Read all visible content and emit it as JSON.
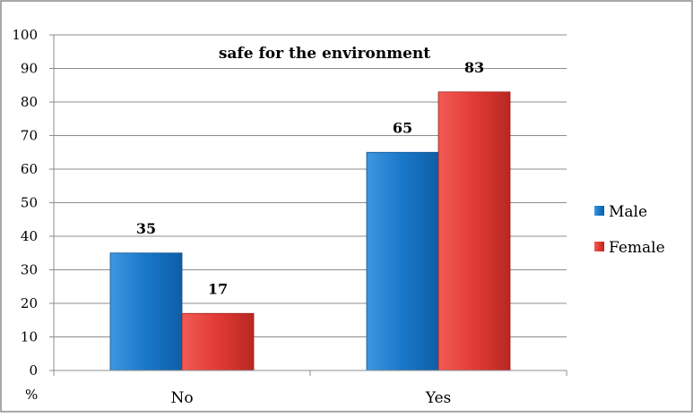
{
  "chart_data": {
    "type": "bar",
    "title": "safe for the environment",
    "ylabel": "%",
    "xlabel": "",
    "categories": [
      "No",
      "Yes"
    ],
    "series": [
      {
        "name": "Male",
        "values": [
          35,
          65
        ],
        "color": "#1f77c8"
      },
      {
        "name": "Female",
        "values": [
          17,
          83
        ],
        "color": "#e03b36"
      }
    ],
    "ylim": [
      0,
      100
    ],
    "yticks": [
      0,
      10,
      20,
      30,
      40,
      50,
      60,
      70,
      80,
      90,
      100
    ],
    "grid": true,
    "legend": "right"
  }
}
